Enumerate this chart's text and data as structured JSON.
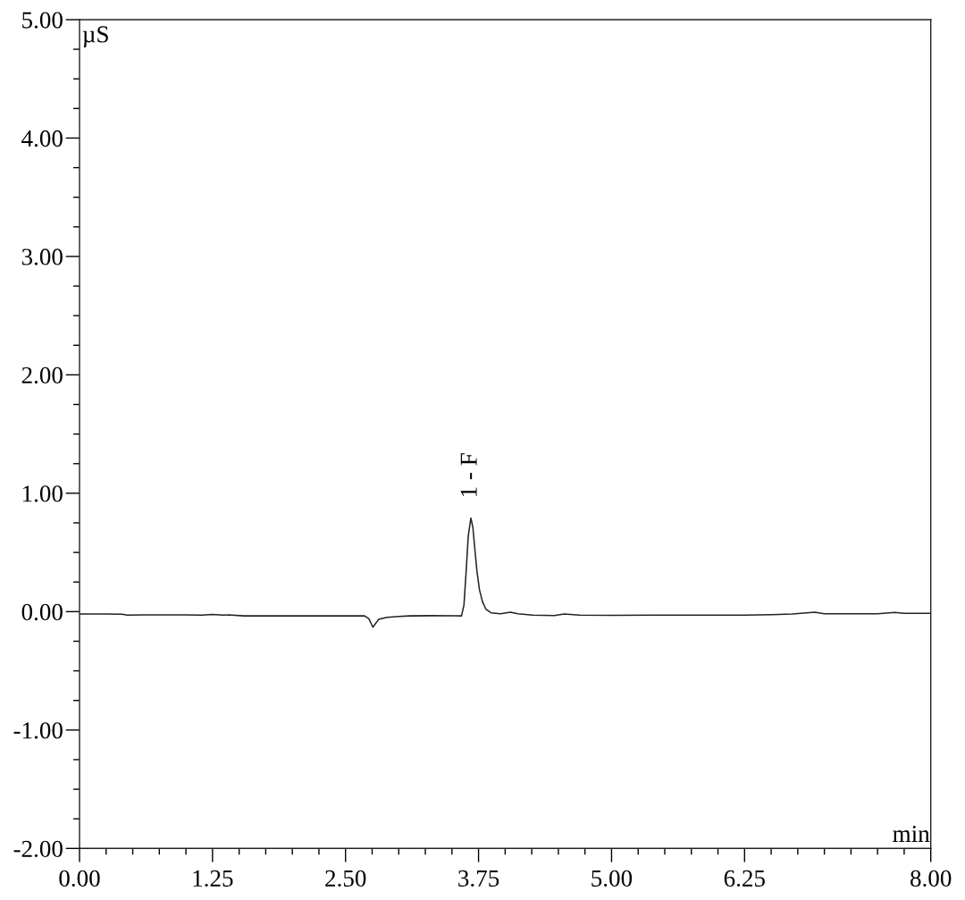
{
  "chart_data": {
    "type": "line",
    "xlabel": "min",
    "ylabel": "µS",
    "x": [
      0.0,
      0.25,
      0.4,
      0.45,
      0.6,
      1.0,
      1.15,
      1.25,
      1.35,
      1.4,
      1.55,
      2.0,
      2.5,
      2.68,
      2.72,
      2.757,
      2.81,
      2.89,
      3.0,
      3.1,
      3.3,
      3.59,
      3.613,
      3.633,
      3.653,
      3.678,
      3.697,
      3.717,
      3.736,
      3.759,
      3.787,
      3.82,
      3.87,
      3.955,
      4.05,
      4.12,
      4.26,
      4.46,
      4.556,
      4.7,
      5.0,
      5.4,
      6.0,
      6.25,
      6.5,
      6.7,
      6.91,
      7.0,
      7.5,
      7.66,
      7.75,
      8.0
    ],
    "series": [
      {
        "color": "#222222",
        "values": [
          -0.02,
          -0.02,
          -0.022,
          -0.03,
          -0.028,
          -0.028,
          -0.03,
          -0.024,
          -0.03,
          -0.028,
          -0.036,
          -0.036,
          -0.036,
          -0.036,
          -0.06,
          -0.131,
          -0.066,
          -0.048,
          -0.04,
          -0.036,
          -0.034,
          -0.036,
          0.057,
          0.334,
          0.636,
          0.79,
          0.71,
          0.51,
          0.334,
          0.183,
          0.083,
          0.02,
          -0.011,
          -0.018,
          -0.005,
          -0.018,
          -0.03,
          -0.034,
          -0.02,
          -0.03,
          -0.032,
          -0.03,
          -0.03,
          -0.03,
          -0.025,
          -0.02,
          -0.005,
          -0.018,
          -0.018,
          -0.006,
          -0.015,
          -0.015
        ]
      }
    ],
    "line_style": "solid",
    "xlim": [
      0,
      8
    ],
    "ylim": [
      -2,
      5
    ],
    "xticks": [
      {
        "value": 0,
        "label": "0.00"
      },
      {
        "value": 0.25,
        "label": null
      },
      {
        "value": 0.5,
        "label": null
      },
      {
        "value": 0.75,
        "label": null
      },
      {
        "value": 1.0,
        "label": null
      },
      {
        "value": 1.25,
        "label": "1.25"
      },
      {
        "value": 1.5,
        "label": null
      },
      {
        "value": 1.75,
        "label": null
      },
      {
        "value": 2.0,
        "label": null
      },
      {
        "value": 2.25,
        "label": null
      },
      {
        "value": 2.5,
        "label": "2.50"
      },
      {
        "value": 2.75,
        "label": null
      },
      {
        "value": 3.0,
        "label": null
      },
      {
        "value": 3.25,
        "label": null
      },
      {
        "value": 3.5,
        "label": null
      },
      {
        "value": 3.75,
        "label": "3.75"
      },
      {
        "value": 4.0,
        "label": null
      },
      {
        "value": 4.25,
        "label": null
      },
      {
        "value": 4.5,
        "label": null
      },
      {
        "value": 4.75,
        "label": null
      },
      {
        "value": 5.0,
        "label": "5.00"
      },
      {
        "value": 5.25,
        "label": null
      },
      {
        "value": 5.5,
        "label": null
      },
      {
        "value": 5.75,
        "label": null
      },
      {
        "value": 6.0,
        "label": null
      },
      {
        "value": 6.25,
        "label": "6.25"
      },
      {
        "value": 6.5,
        "label": null
      },
      {
        "value": 6.75,
        "label": null
      },
      {
        "value": 7.0,
        "label": null
      },
      {
        "value": 7.25,
        "label": null
      },
      {
        "value": 7.5,
        "label": null
      },
      {
        "value": 7.75,
        "label": null
      },
      {
        "value": 8.0,
        "label": "8.00"
      }
    ],
    "yticks": [
      {
        "value": -2,
        "label": "-2.00"
      },
      {
        "value": -1.75,
        "label": null
      },
      {
        "value": -1.5,
        "label": null
      },
      {
        "value": -1.25,
        "label": null
      },
      {
        "value": -1,
        "label": "-1.00"
      },
      {
        "value": -0.75,
        "label": null
      },
      {
        "value": -0.5,
        "label": null
      },
      {
        "value": -0.25,
        "label": null
      },
      {
        "value": 0,
        "label": "0.00"
      },
      {
        "value": 0.25,
        "label": null
      },
      {
        "value": 0.5,
        "label": null
      },
      {
        "value": 0.75,
        "label": null
      },
      {
        "value": 1,
        "label": "1.00"
      },
      {
        "value": 1.25,
        "label": null
      },
      {
        "value": 1.5,
        "label": null
      },
      {
        "value": 1.75,
        "label": null
      },
      {
        "value": 2,
        "label": "2.00"
      },
      {
        "value": 2.25,
        "label": null
      },
      {
        "value": 2.5,
        "label": null
      },
      {
        "value": 2.75,
        "label": null
      },
      {
        "value": 3,
        "label": "3.00"
      },
      {
        "value": 3.25,
        "label": null
      },
      {
        "value": 3.5,
        "label": null
      },
      {
        "value": 3.75,
        "label": null
      },
      {
        "value": 4,
        "label": "4.00"
      },
      {
        "value": 4.25,
        "label": null
      },
      {
        "value": 4.5,
        "label": null
      },
      {
        "value": 4.75,
        "label": null
      },
      {
        "value": 5,
        "label": "5.00"
      }
    ],
    "annotations": [
      {
        "text": "1 - F",
        "x": 3.678,
        "y": 0.79
      }
    ]
  }
}
